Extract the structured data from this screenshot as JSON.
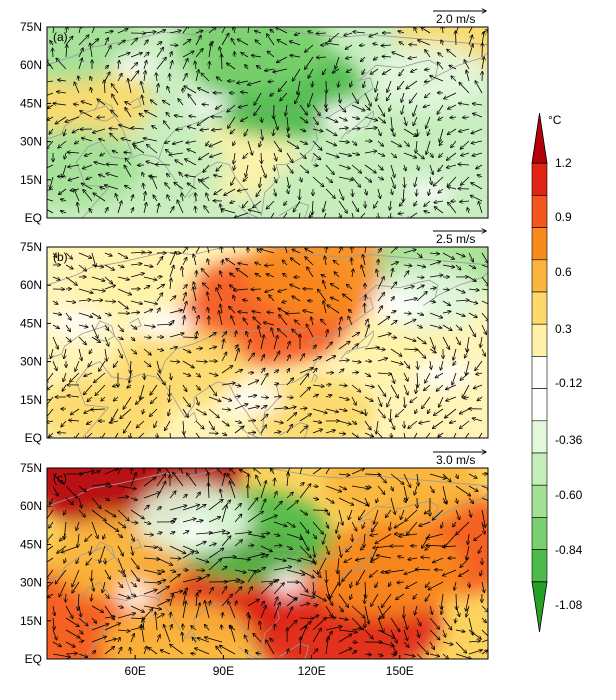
{
  "panels": [
    {
      "label": "(a)",
      "ref_vector": "2.0 m/s",
      "y_ticks": [
        "75N",
        "60N",
        "45N",
        "30N",
        "15N",
        "EQ"
      ],
      "dominant_anomaly": "cool",
      "warm_blobs": [
        {
          "lon": 172,
          "lat": 72,
          "value": 0.5
        },
        {
          "lon": 44,
          "lat": 45,
          "value": 0.45
        },
        {
          "lon": 95,
          "lat": 22,
          "value": 0.4
        }
      ],
      "cool_blobs": [
        {
          "lon": 110,
          "lat": 50,
          "value": -0.8
        },
        {
          "lon": 100,
          "lat": 68,
          "value": -0.7
        },
        {
          "lon": 38,
          "lat": 70,
          "value": -0.6
        },
        {
          "lon": 145,
          "lat": 35,
          "value": -0.45
        },
        {
          "lon": 70,
          "lat": 20,
          "value": -0.45
        },
        {
          "lon": 40,
          "lat": 20,
          "value": -0.5
        },
        {
          "lon": 125,
          "lat": 10,
          "value": -0.4
        },
        {
          "lon": 160,
          "lat": 55,
          "value": -0.35
        }
      ]
    },
    {
      "label": "(b)",
      "ref_vector": "2.5 m/s",
      "y_ticks": [
        "75N",
        "60N",
        "45N",
        "30N",
        "15N",
        "EQ"
      ],
      "dominant_anomaly": "warm",
      "warm_blobs": [
        {
          "lon": 105,
          "lat": 50,
          "value": 1.0
        },
        {
          "lon": 125,
          "lat": 65,
          "value": 0.75
        },
        {
          "lon": 75,
          "lat": 28,
          "value": 0.5
        },
        {
          "lon": 50,
          "lat": 10,
          "value": 0.45
        },
        {
          "lon": 120,
          "lat": 10,
          "value": 0.45
        },
        {
          "lon": 150,
          "lat": 35,
          "value": 0.35
        },
        {
          "lon": 60,
          "lat": 60,
          "value": 0.35
        }
      ],
      "cool_blobs": [
        {
          "lon": 165,
          "lat": 70,
          "value": -0.55
        },
        {
          "lon": 160,
          "lat": 55,
          "value": -0.3
        }
      ]
    },
    {
      "label": "(c)",
      "ref_vector": "3.0 m/s",
      "y_ticks": [
        "75N",
        "60N",
        "45N",
        "30N",
        "15N",
        "EQ"
      ],
      "x_ticks": [
        "60E",
        "90E",
        "120E",
        "150E"
      ],
      "dominant_anomaly": "warm",
      "warm_blobs": [
        {
          "lon": 60,
          "lat": 73,
          "value": 1.3
        },
        {
          "lon": 90,
          "lat": 30,
          "value": 1.1
        },
        {
          "lon": 130,
          "lat": 15,
          "value": 1.15
        },
        {
          "lon": 40,
          "lat": 15,
          "value": 1.0
        },
        {
          "lon": 165,
          "lat": 45,
          "value": 0.9
        },
        {
          "lon": 150,
          "lat": 70,
          "value": 0.7
        },
        {
          "lon": 145,
          "lat": 35,
          "value": 0.75
        },
        {
          "lon": 55,
          "lat": 40,
          "value": 0.6
        },
        {
          "lon": 75,
          "lat": 5,
          "value": 0.7
        }
      ],
      "cool_blobs": [
        {
          "lon": 100,
          "lat": 48,
          "value": -0.75
        },
        {
          "lon": 80,
          "lat": 55,
          "value": -0.35
        }
      ]
    }
  ],
  "colorbar": {
    "unit": "°C",
    "labels": [
      "1.2",
      "0.9",
      "0.6",
      "0.3",
      "-0.12",
      "-0.36",
      "-0.60",
      "-0.84",
      "-1.08"
    ],
    "colors": [
      "#b3000b",
      "#e02314",
      "#f4561e",
      "#f88a1c",
      "#fbb53c",
      "#fcd96a",
      "#fff2a8",
      "#ffffff",
      "#ffffff",
      "#e2f7dc",
      "#c6eebb",
      "#a3e196",
      "#79d06e",
      "#4dbb4a",
      "#25a125"
    ]
  }
}
